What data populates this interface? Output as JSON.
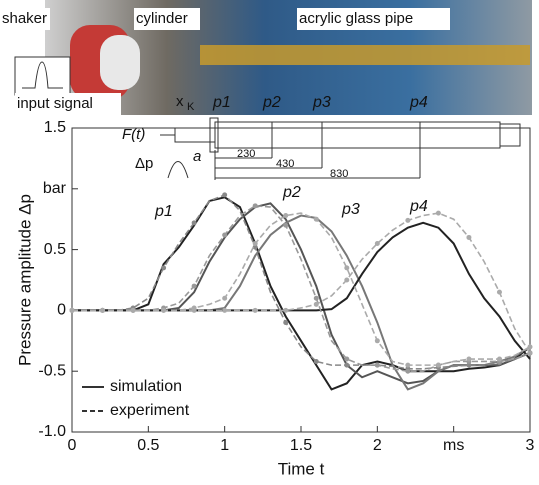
{
  "photo": {
    "labels": [
      "shaker",
      "cylinder",
      "acrylic glass pipe"
    ],
    "signal_label": "input signal"
  },
  "diagram": {
    "force": "F(t)",
    "pressure": "Δp",
    "acceleration": "a",
    "xk": "x",
    "xk_sub": "K",
    "sensors": [
      "p1",
      "p2",
      "p3",
      "p4"
    ],
    "distances": [
      "230",
      "430",
      "830"
    ]
  },
  "chart_data": {
    "type": "line",
    "x_label": "Time t",
    "y_label": "Pressure amplitude Δp",
    "xlim": [
      0,
      3
    ],
    "ylim": [
      -1,
      1.5
    ],
    "xticks": [
      0,
      0.5,
      1,
      1.5,
      2,
      {
        "value": 2.5,
        "label": "ms"
      },
      3
    ],
    "yticks": [
      {
        "value": -1,
        "label": "-1.0"
      },
      -0.5,
      0,
      0.5,
      {
        "value": 1,
        "label": "bar"
      },
      1.5
    ],
    "x": [
      0,
      0.1,
      0.2,
      0.3,
      0.4,
      0.5,
      0.6,
      0.7,
      0.8,
      0.9,
      1,
      1.1,
      1.2,
      1.3,
      1.4,
      1.5,
      1.6,
      1.7,
      1.8,
      1.9,
      2,
      2.1,
      2.2,
      2.3,
      2.4,
      2.5,
      2.6,
      2.7,
      2.8,
      2.9,
      3
    ],
    "groups": [
      {
        "name": "simulation",
        "dashed": false,
        "series": [
          {
            "name": "p1",
            "color": "#222222",
            "values": [
              0,
              0,
              0,
              0,
              0,
              0.05,
              0.38,
              0.52,
              0.7,
              0.9,
              0.93,
              0.85,
              0.55,
              0.2,
              -0.05,
              -0.25,
              -0.45,
              -0.65,
              -0.6,
              -0.45,
              -0.42,
              -0.45,
              -0.5,
              -0.5,
              -0.5,
              -0.5,
              -0.48,
              -0.47,
              -0.45,
              -0.4,
              -0.3
            ]
          },
          {
            "name": "p2",
            "color": "#555555",
            "values": [
              0,
              0,
              0,
              0,
              0,
              0,
              0,
              0.02,
              0.15,
              0.4,
              0.6,
              0.75,
              0.85,
              0.88,
              0.75,
              0.5,
              0.2,
              -0.2,
              -0.45,
              -0.55,
              -0.5,
              -0.55,
              -0.6,
              -0.58,
              -0.5,
              -0.45,
              -0.45,
              -0.45,
              -0.45,
              -0.4,
              -0.35
            ]
          },
          {
            "name": "p3",
            "color": "#777777",
            "values": [
              0,
              0,
              0,
              0,
              0,
              0,
              0,
              0,
              0,
              0,
              0.02,
              0.2,
              0.45,
              0.62,
              0.72,
              0.78,
              0.76,
              0.65,
              0.45,
              0.2,
              -0.1,
              -0.45,
              -0.65,
              -0.6,
              -0.5,
              -0.45,
              -0.45,
              -0.45,
              -0.42,
              -0.38,
              -0.3
            ]
          },
          {
            "name": "p4",
            "color": "#222222",
            "values": [
              0,
              0,
              0,
              0,
              0,
              0,
              0,
              0,
              0,
              0,
              0,
              0,
              0,
              0,
              0,
              0,
              0,
              0.01,
              0.1,
              0.3,
              0.48,
              0.6,
              0.68,
              0.72,
              0.68,
              0.55,
              0.3,
              0.1,
              -0.05,
              -0.25,
              -0.4
            ]
          }
        ]
      },
      {
        "name": "experiment",
        "dashed": true,
        "series": [
          {
            "color": "#888888",
            "values": [
              0,
              0,
              0,
              0,
              0.02,
              0.1,
              0.35,
              0.55,
              0.72,
              0.9,
              0.95,
              0.82,
              0.52,
              0.15,
              -0.1,
              -0.3,
              -0.42,
              -0.45,
              -0.45,
              -0.45,
              -0.45,
              -0.46,
              -0.48,
              -0.48,
              -0.47,
              -0.46,
              -0.45,
              -0.45,
              -0.43,
              -0.4,
              -0.35
            ]
          },
          {
            "color": "#999999",
            "values": [
              0,
              0,
              0,
              0,
              0,
              0,
              0.02,
              0.06,
              0.2,
              0.45,
              0.62,
              0.78,
              0.86,
              0.85,
              0.7,
              0.42,
              0.1,
              -0.25,
              -0.4,
              -0.45,
              -0.45,
              -0.48,
              -0.5,
              -0.5,
              -0.45,
              -0.42,
              -0.42,
              -0.42,
              -0.42,
              -0.4,
              -0.35
            ]
          },
          {
            "color": "#aaaaaa",
            "values": [
              0,
              0,
              0,
              0,
              0,
              0,
              0,
              0,
              0.02,
              0.05,
              0.1,
              0.3,
              0.55,
              0.7,
              0.78,
              0.8,
              0.75,
              0.6,
              0.35,
              0.05,
              -0.25,
              -0.42,
              -0.45,
              -0.45,
              -0.45,
              -0.42,
              -0.4,
              -0.4,
              -0.4,
              -0.37,
              -0.3
            ]
          },
          {
            "color": "#aaaaaa",
            "values": [
              0,
              0,
              0,
              0,
              0,
              0,
              0,
              0,
              0,
              0,
              0,
              0,
              0,
              0,
              0,
              0.02,
              0.05,
              0.12,
              0.25,
              0.42,
              0.55,
              0.66,
              0.74,
              0.78,
              0.8,
              0.75,
              0.6,
              0.4,
              0.15,
              -0.15,
              -0.35
            ]
          }
        ]
      }
    ]
  }
}
